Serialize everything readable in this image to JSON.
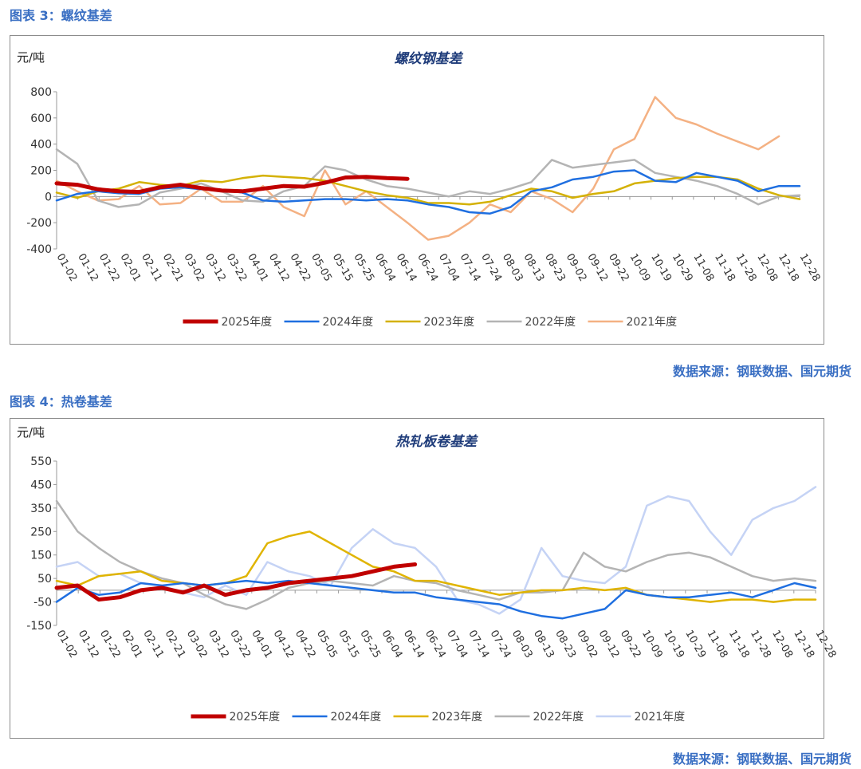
{
  "figures": [
    {
      "caption": "图表 3：螺纹基差",
      "source": "数据来源：钢联数据、国元期货"
    },
    {
      "caption": "图表 4：热卷基差",
      "source": "数据来源：钢联数据、国元期货"
    }
  ],
  "chart_data": [
    {
      "type": "line",
      "title": "螺纹钢基差",
      "ylabel": "元/吨",
      "ylim": [
        -400,
        800
      ],
      "yticks": [
        -400,
        -200,
        0,
        200,
        400,
        600,
        800
      ],
      "grid": false,
      "legend_position": "bottom",
      "x_ticks": [
        "01-02",
        "01-12",
        "01-22",
        "02-01",
        "02-11",
        "02-21",
        "03-02",
        "03-12",
        "03-22",
        "04-01",
        "04-12",
        "04-22",
        "05-05",
        "05-15",
        "05-25",
        "06-04",
        "06-14",
        "06-24",
        "07-04",
        "07-14",
        "07-24",
        "08-03",
        "08-13",
        "08-23",
        "09-02",
        "09-12",
        "09-22",
        "10-09",
        "10-19",
        "10-29",
        "11-08",
        "11-18",
        "11-28",
        "12-08",
        "12-18",
        "12-28"
      ],
      "series": [
        {
          "name": "2025年度",
          "color": "#c00000",
          "values": [
            100,
            90,
            55,
            40,
            35,
            70,
            90,
            65,
            45,
            40,
            60,
            80,
            75,
            105,
            145,
            150,
            140,
            135
          ]
        },
        {
          "name": "2024年度",
          "color": "#1f6fe0",
          "values": [
            -30,
            20,
            40,
            25,
            20,
            60,
            70,
            55,
            50,
            30,
            -30,
            -40,
            -30,
            -20,
            -20,
            -30,
            -20,
            -30,
            -60,
            -80,
            -120,
            -130,
            -80,
            40,
            70,
            130,
            150,
            190,
            200,
            120,
            110,
            180,
            150,
            120,
            40,
            80,
            80
          ]
        },
        {
          "name": "2023年度",
          "color": "#d4b106",
          "values": [
            30,
            -10,
            40,
            60,
            110,
            90,
            80,
            120,
            110,
            140,
            160,
            150,
            140,
            120,
            80,
            40,
            10,
            -10,
            -50,
            -50,
            -60,
            -40,
            10,
            60,
            40,
            -10,
            20,
            40,
            100,
            120,
            140,
            150,
            150,
            130,
            60,
            10,
            -20
          ]
        },
        {
          "name": "2022年度",
          "color": "#b4b4b4",
          "values": [
            360,
            250,
            -30,
            -80,
            -60,
            30,
            60,
            100,
            40,
            -30,
            -40,
            40,
            80,
            230,
            200,
            130,
            80,
            60,
            30,
            0,
            40,
            20,
            60,
            110,
            280,
            220,
            240,
            260,
            280,
            180,
            150,
            120,
            80,
            20,
            -60,
            0,
            10
          ]
        },
        {
          "name": "2021年度",
          "color": "#f4b183",
          "values": [
            120,
            40,
            -30,
            -20,
            80,
            -60,
            -50,
            60,
            -40,
            -40,
            80,
            -80,
            -150,
            200,
            -60,
            40,
            -80,
            -200,
            -330,
            -300,
            -200,
            -60,
            -120,
            40,
            -20,
            -120,
            60,
            360,
            440,
            760,
            600,
            550,
            480,
            420,
            360,
            460
          ]
        }
      ]
    },
    {
      "type": "line",
      "title": "热轧板卷基差",
      "ylabel": "元/吨",
      "ylim": [
        -150,
        550
      ],
      "yticks": [
        -150,
        -50,
        50,
        150,
        250,
        350,
        450,
        550
      ],
      "grid": false,
      "legend_position": "bottom",
      "x_ticks": [
        "01-02",
        "01-12",
        "01-22",
        "02-01",
        "02-11",
        "02-21",
        "03-02",
        "03-12",
        "03-22",
        "04-01",
        "04-12",
        "04-22",
        "05-05",
        "05-15",
        "05-25",
        "06-04",
        "06-14",
        "06-24",
        "07-04",
        "07-14",
        "07-24",
        "08-03",
        "08-13",
        "08-23",
        "09-02",
        "09-12",
        "09-22",
        "10-09",
        "10-19",
        "10-29",
        "11-08",
        "11-18",
        "11-28",
        "12-08",
        "12-18",
        "12-28"
      ],
      "series": [
        {
          "name": "2025年度",
          "color": "#c00000",
          "values": [
            10,
            20,
            -40,
            -30,
            0,
            10,
            -10,
            20,
            -20,
            0,
            10,
            30,
            40,
            50,
            60,
            80,
            100,
            110
          ]
        },
        {
          "name": "2024年度",
          "color": "#1f6fe0",
          "values": [
            -50,
            10,
            -20,
            -10,
            30,
            20,
            30,
            20,
            30,
            40,
            30,
            40,
            30,
            20,
            10,
            0,
            -10,
            -10,
            -30,
            -40,
            -50,
            -60,
            -90,
            -110,
            -120,
            -100,
            -80,
            0,
            -20,
            -30,
            -30,
            -20,
            -10,
            -30,
            0,
            30,
            10
          ]
        },
        {
          "name": "2023年度",
          "color": "#e0b400",
          "values": [
            40,
            20,
            60,
            70,
            80,
            40,
            30,
            20,
            30,
            60,
            200,
            230,
            250,
            200,
            150,
            100,
            80,
            40,
            40,
            20,
            0,
            -20,
            -10,
            0,
            0,
            10,
            0,
            10,
            -20,
            -30,
            -40,
            -50,
            -40,
            -40,
            -50,
            -40,
            -40
          ]
        },
        {
          "name": "2022年度",
          "color": "#b4b4b4",
          "values": [
            380,
            250,
            180,
            120,
            80,
            50,
            30,
            -20,
            -60,
            -80,
            -40,
            10,
            30,
            40,
            30,
            20,
            60,
            40,
            30,
            0,
            -20,
            -40,
            -10,
            -10,
            0,
            160,
            100,
            80,
            120,
            150,
            160,
            140,
            100,
            60,
            40,
            50,
            40
          ]
        },
        {
          "name": "2021年度",
          "color": "#c5d3f5",
          "values": [
            100,
            120,
            60,
            70,
            30,
            20,
            -10,
            -30,
            20,
            -20,
            120,
            80,
            60,
            20,
            180,
            260,
            200,
            180,
            100,
            -40,
            -60,
            -100,
            -40,
            180,
            60,
            40,
            30,
            100,
            360,
            400,
            380,
            250,
            150,
            300,
            350,
            380,
            440
          ]
        }
      ]
    }
  ]
}
